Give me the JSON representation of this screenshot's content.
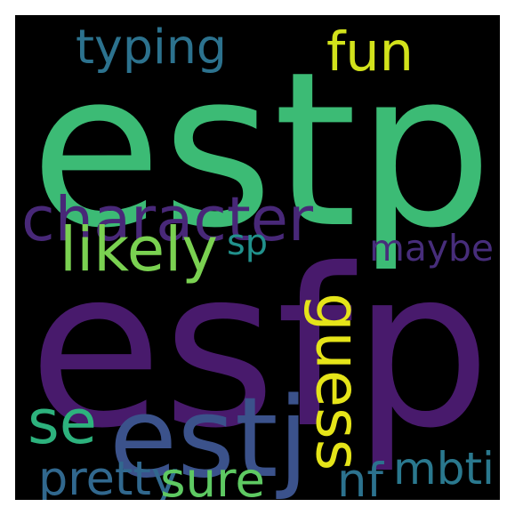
{
  "words": {
    "estp": {
      "text": "estp",
      "color": "#3cbb75"
    },
    "esfp": {
      "text": "esfp",
      "color": "#481a6c"
    },
    "character": {
      "text": "character",
      "color": "#482878"
    },
    "typing": {
      "text": "typing",
      "color": "#2c728e"
    },
    "fun": {
      "text": "fun",
      "color": "#d2e21b"
    },
    "likely": {
      "text": "likely",
      "color": "#7ad151"
    },
    "sp": {
      "text": "sp",
      "color": "#21918c"
    },
    "maybe": {
      "text": "maybe",
      "color": "#472d7b"
    },
    "guess": {
      "text": "guess",
      "color": "#e5e419"
    },
    "se": {
      "text": "se",
      "color": "#2db27d"
    },
    "estj": {
      "text": "estj",
      "color": "#3b528b"
    },
    "mbti": {
      "text": "mbti",
      "color": "#2a788e"
    },
    "pretty": {
      "text": "pretty",
      "color": "#31688e"
    },
    "sure": {
      "text": "sure",
      "color": "#5ec962"
    },
    "nf": {
      "text": "nf",
      "color": "#2c728e"
    }
  }
}
